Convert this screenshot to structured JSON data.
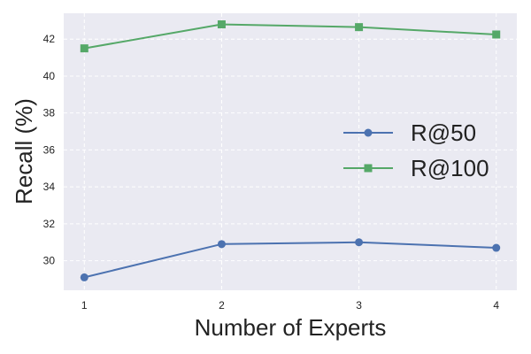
{
  "chart_data": {
    "type": "line",
    "title": "",
    "xlabel": "Number of Experts",
    "ylabel": "Recall (%)",
    "x": [
      1,
      2,
      3,
      4
    ],
    "x_ticks": [
      "1",
      "2",
      "3",
      "4"
    ],
    "xlim": [
      0.85,
      4.15
    ],
    "ylim": [
      28.4,
      43.4
    ],
    "y_ticks": [
      30,
      32,
      34,
      36,
      38,
      40,
      42
    ],
    "y_tick_labels": [
      "30",
      "32",
      "34",
      "36",
      "38",
      "40",
      "42"
    ],
    "grid": true,
    "legend_position": "center-right",
    "background_color": "#eaeaf2",
    "series": [
      {
        "name": "R@50",
        "values": [
          29.1,
          30.9,
          31.0,
          30.7
        ],
        "color": "#4c72b0",
        "marker": "circle"
      },
      {
        "name": "R@100",
        "values": [
          41.5,
          42.8,
          42.65,
          42.25
        ],
        "color": "#55a868",
        "marker": "square"
      }
    ]
  }
}
